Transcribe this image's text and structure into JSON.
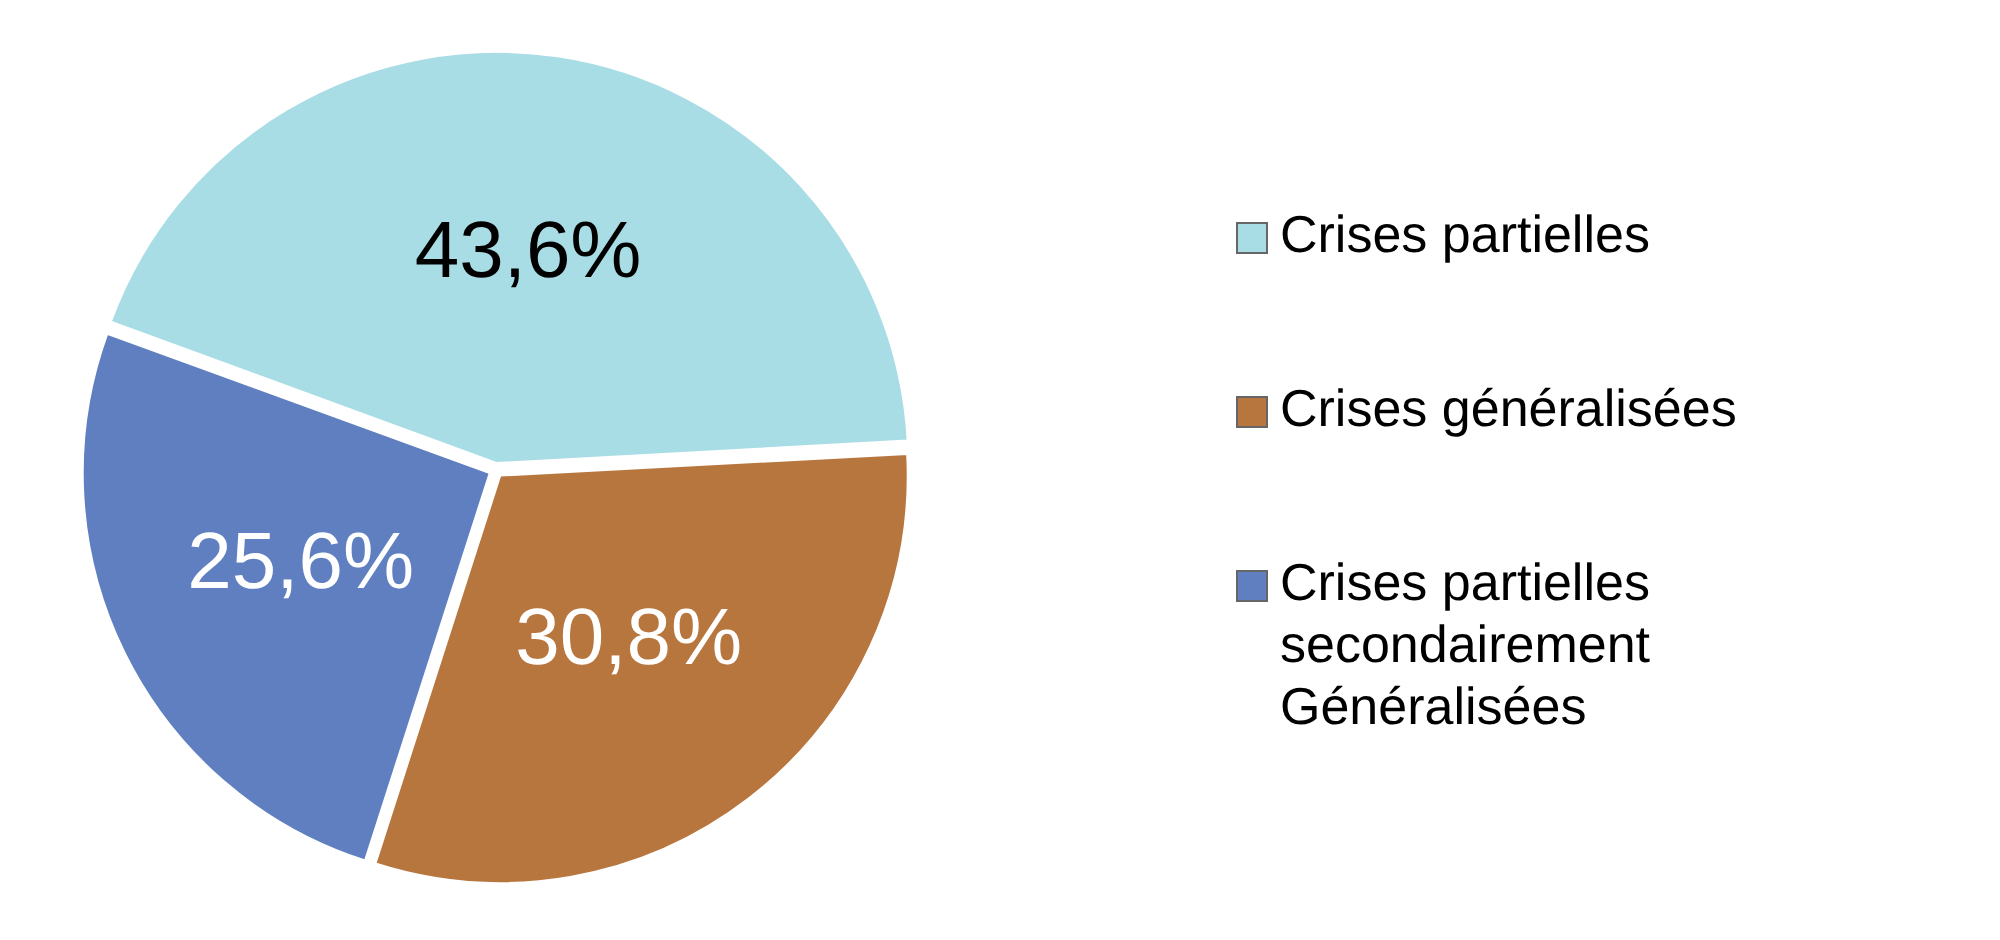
{
  "chart_data": {
    "type": "pie",
    "categories": [
      "Crises partielles",
      "Crises généralisées",
      "Crises partielles secondairement Généralisées"
    ],
    "values": [
      43.6,
      30.8,
      25.6
    ],
    "colors": [
      "#a9dde6",
      "#b8763f",
      "#5f7fc0"
    ],
    "value_labels": [
      "43,6%",
      "30,8%",
      "25,6%"
    ],
    "legend": "right"
  }
}
